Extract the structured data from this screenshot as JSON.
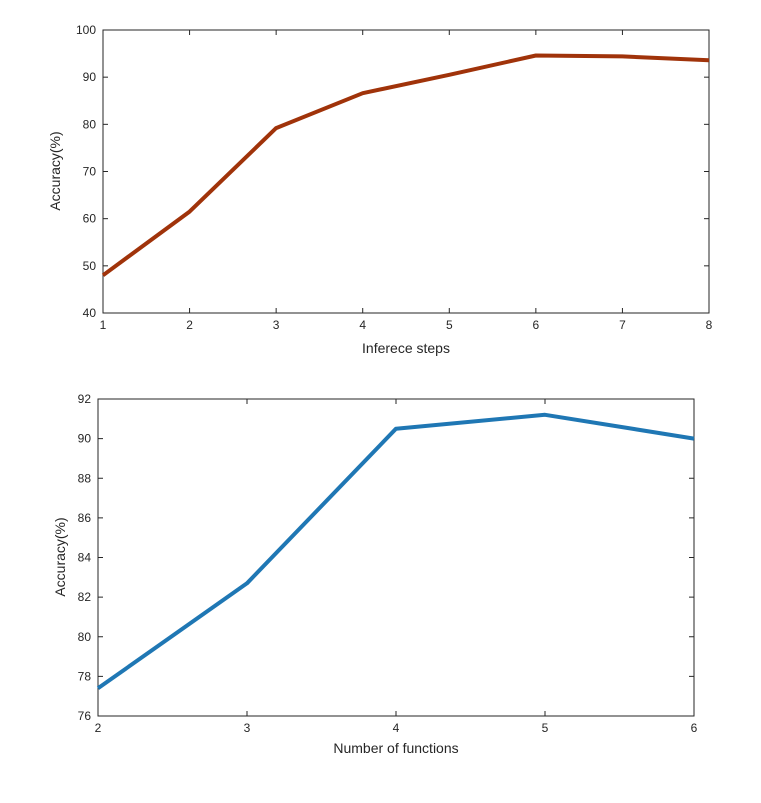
{
  "chart_data": [
    {
      "type": "line",
      "xlabel": "Inferece steps",
      "ylabel": "Accuracy(%)",
      "xlim": [
        1,
        8
      ],
      "ylim": [
        40,
        100
      ],
      "xticks": [
        1,
        2,
        3,
        4,
        5,
        6,
        7,
        8
      ],
      "yticks": [
        40,
        50,
        60,
        70,
        80,
        90,
        100
      ],
      "grid": false,
      "series": [
        {
          "color": "#a0330a",
          "x": [
            1,
            2,
            3,
            4,
            5,
            6,
            7,
            8
          ],
          "y": [
            48,
            61.5,
            79.2,
            86.6,
            90.5,
            94.6,
            94.4,
            93.6
          ]
        }
      ]
    },
    {
      "type": "line",
      "xlabel": "Number of functions",
      "ylabel": "Accuracy(%)",
      "xlim": [
        2,
        6
      ],
      "ylim": [
        76,
        92
      ],
      "xticks": [
        2,
        3,
        4,
        5,
        6
      ],
      "yticks": [
        76,
        78,
        80,
        82,
        84,
        86,
        88,
        90,
        92
      ],
      "grid": false,
      "series": [
        {
          "color": "#1f77b4",
          "x": [
            2,
            3,
            4,
            5,
            6
          ],
          "y": [
            77.4,
            82.7,
            90.5,
            91.2,
            90.0
          ]
        }
      ]
    }
  ]
}
